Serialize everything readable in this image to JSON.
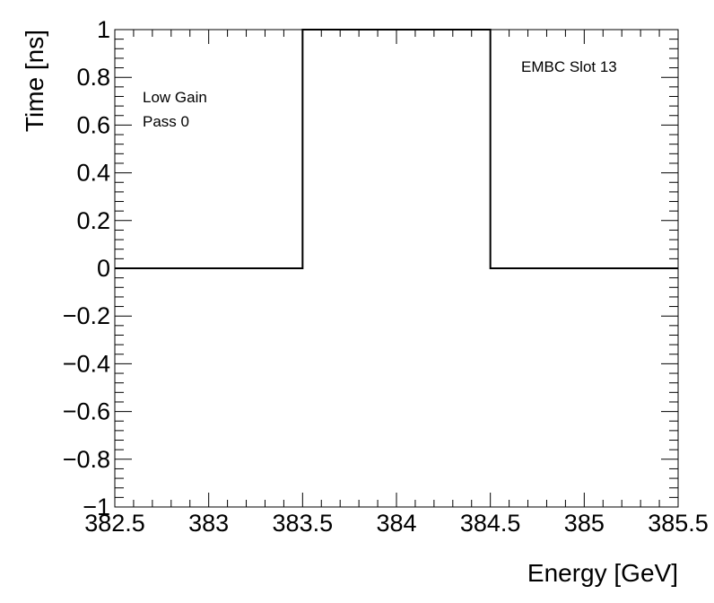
{
  "chart_data": {
    "type": "line",
    "xlabel": "Energy [GeV]",
    "ylabel": "Time [ns]",
    "xlim": [
      382.5,
      385.5
    ],
    "ylim": [
      -1,
      1
    ],
    "x_ticks": [
      382.5,
      383,
      383.5,
      384,
      384.5,
      385,
      385.5
    ],
    "x_tick_labels": [
      "382.5",
      "383",
      "383.5",
      "384",
      "384.5",
      "385",
      "385.5"
    ],
    "y_ticks": [
      -1,
      -0.8,
      -0.6,
      -0.4,
      -0.2,
      0,
      0.2,
      0.4,
      0.6,
      0.8,
      1
    ],
    "y_tick_labels": [
      "−1",
      "−0.8",
      "−0.6",
      "−0.4",
      "−0.2",
      "0",
      "0.2",
      "0.4",
      "0.6",
      "0.8",
      "1"
    ],
    "series": [
      {
        "style": "histogram-step",
        "bin_edges": [
          382.5,
          383.5,
          384.5,
          385.5
        ],
        "values": [
          0,
          1,
          0
        ]
      }
    ],
    "annotations": {
      "gain": "Low Gain",
      "pass": "Pass 0",
      "module": "EMBC Slot 13"
    },
    "grid": false,
    "line_color": "#000000"
  }
}
